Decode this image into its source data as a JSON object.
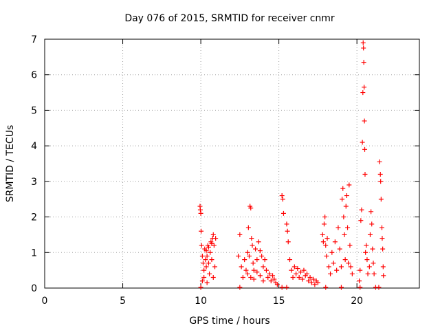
{
  "chart_data": {
    "type": "scatter",
    "title": "Day 076 of 2015, SRMTID for receiver cnmr",
    "xlabel": "GPS time / hours",
    "ylabel": "SRMTID / TECUs",
    "xlim": [
      0,
      24
    ],
    "ylim": [
      0,
      7
    ],
    "xticks": [
      0,
      5,
      10,
      15,
      20
    ],
    "yticks": [
      0,
      1,
      2,
      3,
      4,
      5,
      6,
      7
    ],
    "x_tick_labels": [
      "0",
      "5",
      "10",
      "15",
      "20"
    ],
    "y_tick_labels": [
      "0",
      "1",
      "2",
      "3",
      "4",
      "5",
      "6",
      "7"
    ],
    "grid": true,
    "marker": "+",
    "series": [
      {
        "name": "SRMTID",
        "color": "#ff0000",
        "points": [
          [
            9.95,
            2.3
          ],
          [
            9.97,
            2.2
          ],
          [
            10.0,
            2.1
          ],
          [
            10.02,
            1.6
          ],
          [
            10.05,
            1.2
          ],
          [
            10.1,
            0.9
          ],
          [
            10.15,
            0.7
          ],
          [
            10.2,
            0.5
          ],
          [
            10.25,
            1.1
          ],
          [
            10.3,
            0.8
          ],
          [
            10.35,
            0.6
          ],
          [
            10.4,
            0.9
          ],
          [
            10.45,
            1.2
          ],
          [
            10.5,
            0.7
          ],
          [
            10.55,
            0.4
          ],
          [
            10.6,
            1.0
          ],
          [
            10.65,
            1.3
          ],
          [
            10.7,
            0.8
          ],
          [
            10.75,
            1.4
          ],
          [
            10.8,
            1.5
          ],
          [
            10.85,
            1.2
          ],
          [
            10.9,
            0.6
          ],
          [
            10.95,
            1.4
          ],
          [
            10.2,
            0.3
          ],
          [
            10.35,
            1.05
          ],
          [
            10.5,
            1.15
          ],
          [
            10.7,
            1.25
          ],
          [
            10.1,
            0.2
          ],
          [
            10.4,
            0.15
          ],
          [
            10.8,
            0.3
          ],
          [
            12.4,
            0.9
          ],
          [
            12.5,
            1.5
          ],
          [
            12.6,
            0.6
          ],
          [
            12.7,
            0.3
          ],
          [
            12.8,
            0.8
          ],
          [
            12.9,
            0.5
          ],
          [
            13.0,
            1.0
          ],
          [
            13.05,
            1.7
          ],
          [
            13.1,
            0.9
          ],
          [
            13.15,
            2.3
          ],
          [
            13.2,
            2.25
          ],
          [
            13.25,
            1.4
          ],
          [
            13.3,
            1.2
          ],
          [
            13.35,
            0.7
          ],
          [
            13.4,
            0.5
          ],
          [
            13.5,
            1.1
          ],
          [
            13.6,
            0.8
          ],
          [
            13.7,
            1.3
          ],
          [
            13.8,
            1.05
          ],
          [
            13.9,
            0.9
          ],
          [
            14.0,
            0.6
          ],
          [
            14.1,
            0.8
          ],
          [
            14.2,
            0.5
          ],
          [
            14.3,
            0.3
          ],
          [
            14.4,
            0.4
          ],
          [
            14.5,
            0.2
          ],
          [
            14.6,
            0.35
          ],
          [
            14.7,
            0.25
          ],
          [
            14.8,
            0.15
          ],
          [
            14.9,
            0.1
          ],
          [
            13.0,
            0.4
          ],
          [
            13.2,
            0.3
          ],
          [
            13.4,
            0.25
          ],
          [
            13.6,
            0.45
          ],
          [
            13.8,
            0.35
          ],
          [
            14.0,
            0.2
          ],
          [
            15.2,
            2.6
          ],
          [
            15.25,
            2.5
          ],
          [
            15.3,
            2.1
          ],
          [
            15.5,
            1.8
          ],
          [
            15.55,
            1.6
          ],
          [
            15.6,
            1.3
          ],
          [
            15.7,
            0.8
          ],
          [
            15.8,
            0.5
          ],
          [
            15.9,
            0.3
          ],
          [
            16.0,
            0.6
          ],
          [
            16.1,
            0.4
          ],
          [
            16.2,
            0.55
          ],
          [
            16.3,
            0.3
          ],
          [
            16.4,
            0.45
          ],
          [
            16.5,
            0.25
          ],
          [
            16.6,
            0.5
          ],
          [
            16.7,
            0.35
          ],
          [
            16.8,
            0.4
          ],
          [
            16.9,
            0.2
          ],
          [
            17.0,
            0.3
          ],
          [
            17.1,
            0.15
          ],
          [
            17.2,
            0.25
          ],
          [
            17.3,
            0.1
          ],
          [
            17.4,
            0.2
          ],
          [
            17.5,
            0.15
          ],
          [
            17.8,
            1.5
          ],
          [
            17.85,
            1.3
          ],
          [
            17.9,
            1.8
          ],
          [
            17.95,
            2.0
          ],
          [
            18.0,
            1.2
          ],
          [
            18.05,
            0.9
          ],
          [
            18.1,
            1.4
          ],
          [
            18.2,
            0.6
          ],
          [
            18.3,
            0.4
          ],
          [
            18.4,
            1.0
          ],
          [
            18.5,
            0.7
          ],
          [
            18.6,
            1.3
          ],
          [
            18.7,
            0.5
          ],
          [
            18.8,
            1.7
          ],
          [
            18.9,
            1.1
          ],
          [
            19.0,
            0.6
          ],
          [
            19.05,
            2.5
          ],
          [
            19.1,
            2.8
          ],
          [
            19.15,
            2.0
          ],
          [
            19.2,
            1.5
          ],
          [
            19.25,
            0.8
          ],
          [
            19.3,
            2.3
          ],
          [
            19.35,
            2.6
          ],
          [
            19.4,
            1.7
          ],
          [
            19.45,
            0.7
          ],
          [
            19.5,
            2.9
          ],
          [
            19.55,
            1.2
          ],
          [
            19.6,
            0.6
          ],
          [
            19.7,
            0.4
          ],
          [
            20.15,
            0.2
          ],
          [
            20.2,
            0.5
          ],
          [
            20.25,
            1.9
          ],
          [
            20.3,
            2.2
          ],
          [
            20.35,
            4.1
          ],
          [
            20.38,
            5.5
          ],
          [
            20.4,
            6.9
          ],
          [
            20.42,
            6.75
          ],
          [
            20.44,
            6.35
          ],
          [
            20.46,
            5.65
          ],
          [
            20.48,
            4.7
          ],
          [
            20.5,
            3.9
          ],
          [
            20.52,
            3.2
          ],
          [
            20.55,
            1.0
          ],
          [
            20.6,
            1.2
          ],
          [
            20.65,
            0.8
          ],
          [
            20.7,
            0.4
          ],
          [
            20.8,
            0.6
          ],
          [
            20.85,
            1.5
          ],
          [
            20.9,
            2.15
          ],
          [
            20.95,
            1.8
          ],
          [
            21.0,
            1.1
          ],
          [
            21.05,
            0.7
          ],
          [
            21.1,
            0.4
          ],
          [
            21.45,
            3.55
          ],
          [
            21.5,
            3.2
          ],
          [
            21.52,
            3.0
          ],
          [
            21.55,
            2.5
          ],
          [
            21.6,
            1.7
          ],
          [
            21.62,
            1.4
          ],
          [
            21.65,
            1.1
          ],
          [
            21.68,
            0.6
          ],
          [
            21.7,
            0.35
          ],
          [
            10.0,
            0.02
          ],
          [
            12.5,
            0.02
          ],
          [
            15.2,
            0.02
          ],
          [
            15.5,
            0.02
          ],
          [
            18.0,
            0.02
          ],
          [
            19.0,
            0.02
          ],
          [
            20.2,
            0.02
          ],
          [
            21.2,
            0.02
          ],
          [
            21.4,
            0.02
          ]
        ]
      }
    ]
  }
}
